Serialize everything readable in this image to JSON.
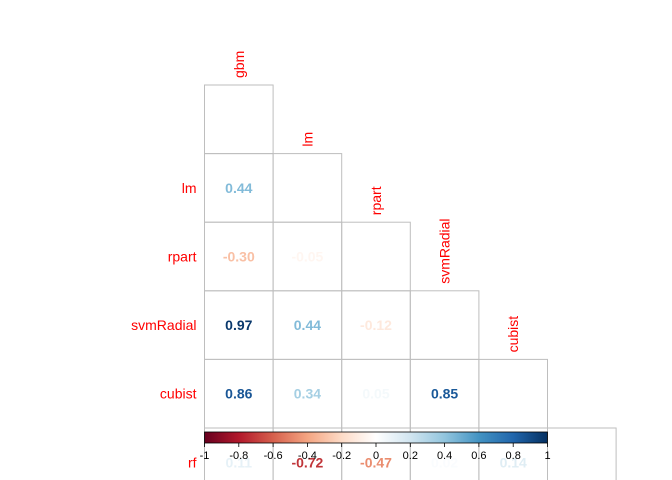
{
  "chart_data": {
    "type": "heatmap",
    "variables": [
      "gbm",
      "lm",
      "rpart",
      "svmRadial",
      "cubist",
      "rf"
    ],
    "row_labels": [
      "lm",
      "rpart",
      "svmRadial",
      "cubist",
      "rf"
    ],
    "column_labels": [
      "gbm",
      "lm",
      "rpart",
      "svmRadial",
      "cubist"
    ],
    "cells": [
      {
        "row": "lm",
        "col": "gbm",
        "value": 0.44,
        "label": "0.44"
      },
      {
        "row": "rpart",
        "col": "gbm",
        "value": -0.3,
        "label": "-0.30"
      },
      {
        "row": "rpart",
        "col": "lm",
        "value": -0.05,
        "label": "-0.05"
      },
      {
        "row": "svmRadial",
        "col": "gbm",
        "value": 0.97,
        "label": "0.97"
      },
      {
        "row": "svmRadial",
        "col": "lm",
        "value": 0.44,
        "label": "0.44"
      },
      {
        "row": "svmRadial",
        "col": "rpart",
        "value": -0.12,
        "label": "-0.12"
      },
      {
        "row": "cubist",
        "col": "gbm",
        "value": 0.86,
        "label": "0.86"
      },
      {
        "row": "cubist",
        "col": "lm",
        "value": 0.34,
        "label": "0.34"
      },
      {
        "row": "cubist",
        "col": "rpart",
        "value": 0.05,
        "label": "0.05"
      },
      {
        "row": "cubist",
        "col": "svmRadial",
        "value": 0.85,
        "label": "0.85"
      },
      {
        "row": "rf",
        "col": "gbm",
        "value": 0.11,
        "label": "0.11"
      },
      {
        "row": "rf",
        "col": "lm",
        "value": -0.72,
        "label": "-0.72"
      },
      {
        "row": "rf",
        "col": "rpart",
        "value": -0.47,
        "label": "-0.47"
      },
      {
        "row": "rf",
        "col": "svmRadial",
        "value": 0.02,
        "label": "0.02"
      },
      {
        "row": "rf",
        "col": "cubist",
        "value": 0.14,
        "label": "0.14"
      }
    ],
    "colorbar": {
      "range": [
        -1,
        1
      ],
      "tick_labels": [
        "-1",
        "-0.8",
        "-0.6",
        "-0.4",
        "-0.2",
        "0",
        "0.2",
        "0.4",
        "0.6",
        "0.8",
        "1"
      ],
      "palette": [
        "#67001F",
        "#B2182B",
        "#D6604D",
        "#F4A582",
        "#FDDBC7",
        "#FFFFFF",
        "#D1E5F0",
        "#92C5DE",
        "#4393C3",
        "#2166AC",
        "#053061"
      ]
    },
    "label_color": "#FF0000",
    "grid_color": "#BEBEBE",
    "layout": "lower-triangle",
    "legend_placement": "bottom"
  }
}
